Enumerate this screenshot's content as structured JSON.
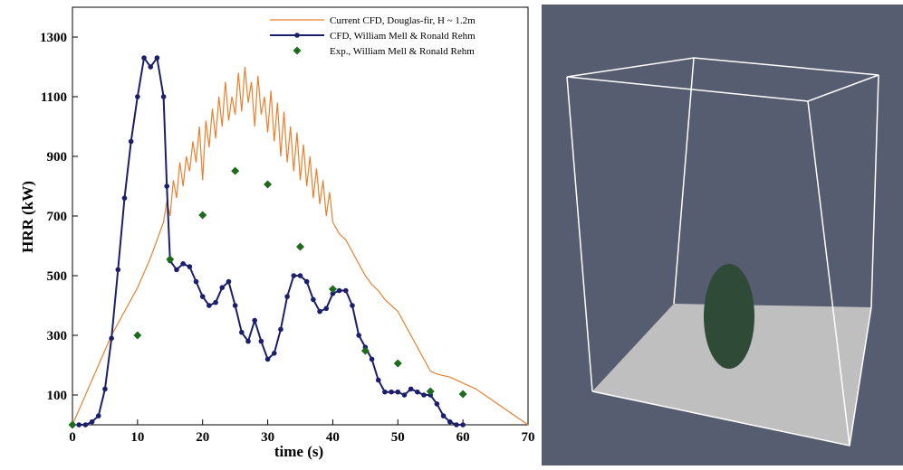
{
  "chart_data": {
    "type": "line",
    "xlabel": "time (s)",
    "ylabel": "HRR (kW)",
    "xlim": [
      0,
      70
    ],
    "ylim": [
      0,
      1400
    ],
    "xticks": [
      0,
      10,
      20,
      30,
      40,
      50,
      60,
      70
    ],
    "yticks": [
      100,
      300,
      500,
      700,
      900,
      1100,
      1300
    ],
    "legend": "upper right",
    "series": [
      {
        "name": "Current CFD, Douglas-fir, H ~ 1.2m",
        "color": "#e8812f",
        "style": "line",
        "x": [
          0,
          2,
          4,
          6,
          8,
          10,
          12,
          13,
          14,
          14.5,
          15,
          15.5,
          16,
          16.5,
          17,
          17.5,
          18,
          18.5,
          19,
          19.5,
          20,
          20.5,
          21,
          21.5,
          22,
          22.5,
          23,
          23.5,
          24,
          24.5,
          25,
          25.5,
          26,
          26.5,
          27,
          27.5,
          28,
          28.5,
          29,
          29.5,
          30,
          30.5,
          31,
          31.5,
          32,
          32.5,
          33,
          33.5,
          34,
          34.5,
          35,
          35.5,
          36,
          36.5,
          37,
          37.5,
          38,
          38.5,
          39,
          39.5,
          40,
          41,
          42,
          43,
          44,
          45,
          46,
          47,
          48,
          49,
          50,
          51,
          52,
          53,
          54,
          55,
          56,
          58,
          60,
          62,
          64,
          66,
          68,
          70
        ],
        "values": [
          0,
          100,
          200,
          300,
          380,
          460,
          560,
          620,
          680,
          750,
          700,
          820,
          760,
          880,
          800,
          900,
          850,
          950,
          880,
          1000,
          820,
          1020,
          930,
          1060,
          960,
          1100,
          1000,
          1150,
          1020,
          1100,
          1040,
          1180,
          1050,
          1200,
          1080,
          1150,
          1000,
          1170,
          1040,
          1100,
          980,
          1120,
          950,
          1080,
          900,
          1050,
          880,
          1000,
          850,
          980,
          820,
          940,
          800,
          900,
          760,
          860,
          740,
          820,
          700,
          780,
          680,
          640,
          620,
          580,
          540,
          500,
          470,
          450,
          420,
          400,
          380,
          340,
          300,
          260,
          220,
          180,
          170,
          160,
          140,
          120,
          90,
          60,
          30,
          0
        ]
      },
      {
        "name": "CFD, William Mell & Ronald Rehm",
        "color": "#1b1f6b",
        "style": "line-markers",
        "x": [
          1,
          2,
          3,
          4,
          5,
          6,
          7,
          8,
          9,
          10,
          11,
          12,
          13,
          14,
          14.5,
          15,
          16,
          17,
          18,
          19,
          20,
          21,
          22,
          23,
          24,
          25,
          26,
          27,
          28,
          29,
          30,
          31,
          32,
          33,
          34,
          35,
          36,
          37,
          38,
          39,
          40,
          41,
          42,
          43,
          44,
          45,
          46,
          47,
          48,
          49,
          50,
          51,
          52,
          53,
          54,
          55,
          56,
          57,
          58,
          59,
          60
        ],
        "values": [
          0,
          0,
          10,
          30,
          120,
          290,
          520,
          760,
          950,
          1100,
          1230,
          1200,
          1230,
          1100,
          800,
          550,
          520,
          540,
          530,
          480,
          430,
          400,
          410,
          460,
          480,
          400,
          310,
          280,
          350,
          280,
          220,
          240,
          320,
          430,
          500,
          500,
          480,
          420,
          380,
          390,
          440,
          450,
          450,
          400,
          300,
          260,
          220,
          150,
          110,
          110,
          110,
          100,
          120,
          110,
          100,
          100,
          70,
          30,
          10,
          0,
          0
        ]
      },
      {
        "name": "Exp., William Mell & Ronald Rehm",
        "color": "#1e6b1e",
        "style": "markers",
        "x": [
          0,
          10,
          15,
          20,
          25,
          30,
          35,
          40,
          45,
          50,
          55,
          60
        ],
        "values": [
          0,
          300,
          555,
          703,
          851,
          806,
          597,
          455,
          248,
          206,
          112,
          103
        ]
      }
    ]
  }
}
